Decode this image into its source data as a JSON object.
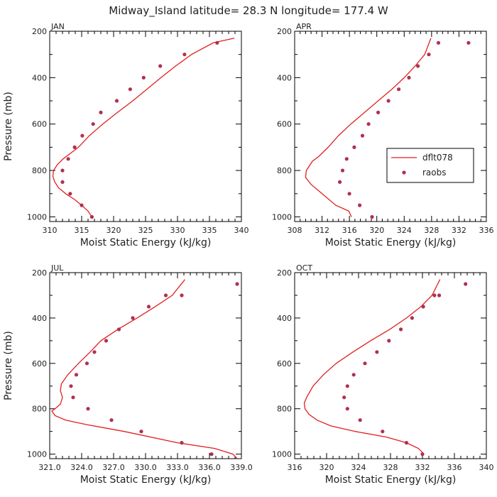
{
  "title": "Midway_Island  latitude= 28.3 N longitude= 177.4 W",
  "colors": {
    "model": "#e02020",
    "obs": "#b03050",
    "frame": "#000000"
  },
  "legend": {
    "model_label": "dflt078",
    "obs_label": "raobs"
  },
  "chart_data": [
    {
      "type": "line",
      "panel": "JAN",
      "xlabel": "Moist Static Energy (kJ/kg)",
      "ylabel": "Pressure (mb)",
      "xlim": [
        310,
        340
      ],
      "ylim": [
        1020,
        200
      ],
      "xticks": [
        310,
        315,
        320,
        325,
        330,
        335,
        340
      ],
      "xtick_labels": [
        "310",
        "315",
        "320",
        "325",
        "330",
        "335",
        "340"
      ],
      "yticks": [
        200,
        400,
        600,
        800,
        1000
      ],
      "ytick_labels": [
        "200",
        "400",
        "600",
        "800",
        "1000"
      ],
      "series": [
        {
          "name": "dflt078",
          "kind": "line",
          "x": [
            316.6,
            316.0,
            315.0,
            313.9,
            312.5,
            311.4,
            310.8,
            310.5,
            310.6,
            311.2,
            312.1,
            313.3,
            314.5,
            316.2,
            318.3,
            320.6,
            323.0,
            325.2,
            327.4,
            329.7,
            332.2,
            335.6,
            338.9
          ],
          "y": [
            1000,
            975,
            950,
            925,
            900,
            875,
            850,
            825,
            800,
            775,
            750,
            725,
            700,
            650,
            600,
            550,
            500,
            450,
            400,
            350,
            300,
            250,
            230
          ]
        },
        {
          "name": "raobs",
          "kind": "points",
          "x": [
            316.6,
            315.0,
            313.2,
            312.0,
            312.0,
            312.9,
            313.9,
            315.1,
            316.8,
            318.0,
            320.5,
            322.6,
            324.7,
            327.3,
            331.1,
            336.2
          ],
          "y": [
            1000,
            950,
            900,
            850,
            800,
            750,
            700,
            650,
            600,
            550,
            500,
            450,
            400,
            350,
            300,
            250
          ]
        }
      ]
    },
    {
      "type": "line",
      "panel": "APR",
      "xlabel": "Moist Static Energy (kJ/kg)",
      "ylabel": "",
      "xlim": [
        308,
        336
      ],
      "ylim": [
        1020,
        200
      ],
      "xticks": [
        308,
        312,
        316,
        320,
        324,
        328,
        332,
        336
      ],
      "xtick_labels": [
        "308",
        "312",
        "316",
        "320",
        "324",
        "328",
        "332",
        "336"
      ],
      "yticks": [
        200,
        400,
        600,
        800,
        1000
      ],
      "ytick_labels": [
        "200",
        "400",
        "600",
        "800",
        "1000"
      ],
      "series": [
        {
          "name": "dflt078",
          "kind": "line",
          "x": [
            316.3,
            315.9,
            314.0,
            312.0,
            310.4,
            309.6,
            309.7,
            310.6,
            311.5,
            312.9,
            314.4,
            316.2,
            318.2,
            320.2,
            322.2,
            324.0,
            325.6,
            327.0,
            327.9
          ],
          "y": [
            1000,
            975,
            950,
            900,
            860,
            830,
            800,
            760,
            740,
            700,
            650,
            600,
            550,
            500,
            450,
            400,
            350,
            300,
            230
          ]
        },
        {
          "name": "raobs",
          "kind": "points",
          "x": [
            319.3,
            317.5,
            316.0,
            314.6,
            315.0,
            315.6,
            316.7,
            317.9,
            318.8,
            320.2,
            321.7,
            323.2,
            324.7,
            326.0,
            327.6,
            329.0,
            333.4
          ],
          "y": [
            1000,
            950,
            900,
            850,
            800,
            750,
            700,
            650,
            600,
            550,
            500,
            450,
            400,
            350,
            300,
            250,
            250
          ]
        }
      ]
    },
    {
      "type": "line",
      "panel": "JUL",
      "xlabel": "Moist Static Energy (kJ/kg)",
      "ylabel": "Pressure (mb)",
      "xlim": [
        321,
        339
      ],
      "ylim": [
        1020,
        200
      ],
      "xticks": [
        321,
        324,
        327,
        330,
        333,
        336,
        339
      ],
      "xtick_labels": [
        "321.0",
        "324.0",
        "327.0",
        "330.0",
        "333.0",
        "336.0",
        "339.0"
      ],
      "yticks": [
        200,
        400,
        600,
        800,
        1000
      ],
      "ytick_labels": [
        "200",
        "400",
        "600",
        "800",
        "1000"
      ],
      "series": [
        {
          "name": "dflt078",
          "kind": "line",
          "x": [
            338.6,
            338.2,
            336.5,
            333.0,
            328.0,
            324.5,
            322.5,
            321.5,
            321.2,
            321.5,
            322.0,
            322.2,
            322.0,
            322.1,
            322.7,
            323.7,
            324.8,
            325.8,
            327.4,
            329.2,
            330.9,
            332.5,
            333.7
          ],
          "y": [
            1020,
            1000,
            975,
            950,
            900,
            870,
            850,
            830,
            810,
            800,
            780,
            750,
            720,
            690,
            650,
            600,
            550,
            500,
            450,
            400,
            350,
            300,
            230
          ]
        },
        {
          "name": "raobs",
          "kind": "points",
          "x": [
            336.2,
            333.4,
            329.6,
            326.8,
            324.6,
            323.2,
            323.0,
            323.5,
            324.5,
            325.2,
            326.3,
            327.5,
            328.8,
            330.3,
            331.9,
            333.4,
            338.6
          ],
          "y": [
            1000,
            950,
            900,
            850,
            800,
            750,
            700,
            650,
            600,
            550,
            500,
            450,
            400,
            350,
            300,
            300,
            250
          ]
        }
      ]
    },
    {
      "type": "line",
      "panel": "OCT",
      "xlabel": "Moist Static Energy (kJ/kg)",
      "ylabel": "",
      "xlim": [
        316,
        340
      ],
      "ylim": [
        1020,
        200
      ],
      "xticks": [
        316,
        320,
        324,
        328,
        332,
        336,
        340
      ],
      "xtick_labels": [
        "316",
        "320",
        "324",
        "328",
        "332",
        "336",
        "340"
      ],
      "yticks": [
        200,
        400,
        600,
        800,
        1000
      ],
      "ytick_labels": [
        "200",
        "400",
        "600",
        "800",
        "1000"
      ],
      "series": [
        {
          "name": "dflt078",
          "kind": "line",
          "x": [
            332.2,
            331.5,
            330.0,
            327.5,
            323.6,
            320.5,
            318.8,
            317.8,
            317.3,
            317.2,
            317.5,
            318.3,
            319.6,
            321.2,
            323.3,
            325.5,
            327.9,
            330.0,
            331.8,
            333.2,
            334.2
          ],
          "y": [
            1000,
            975,
            950,
            925,
            900,
            875,
            850,
            825,
            800,
            775,
            750,
            700,
            650,
            600,
            550,
            500,
            450,
            400,
            350,
            300,
            230
          ]
        },
        {
          "name": "raobs",
          "kind": "points",
          "x": [
            332.0,
            330.0,
            327.0,
            324.2,
            322.6,
            322.2,
            322.6,
            323.4,
            324.8,
            326.3,
            327.8,
            329.3,
            330.7,
            332.1,
            333.5,
            334.1,
            337.4
          ],
          "y": [
            1000,
            950,
            900,
            850,
            800,
            750,
            700,
            650,
            600,
            550,
            500,
            450,
            400,
            350,
            300,
            300,
            250
          ]
        }
      ]
    }
  ]
}
